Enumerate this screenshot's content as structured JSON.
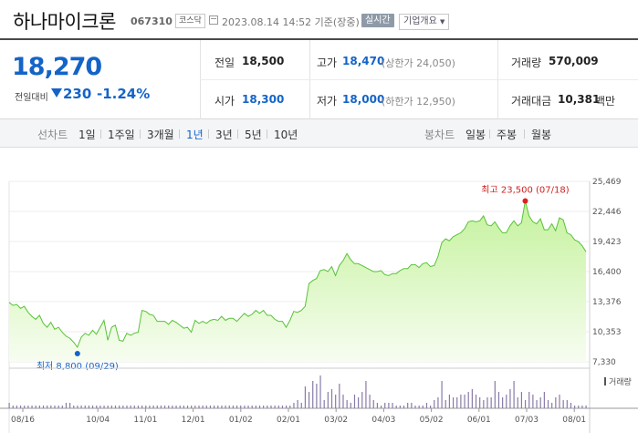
{
  "header": {
    "name": "하나마이크론",
    "code": "067310",
    "market": "코스닥",
    "timestamp": "2023.08.14 14:52 기준(장중)",
    "realtime": "실시간",
    "overview": "기업개요"
  },
  "quote": {
    "price": "18,270",
    "change_label": "전일대비",
    "change": "230",
    "change_pct": "-1.24%",
    "prev_close_label": "전일",
    "prev_close": "18,500",
    "high_label": "고가",
    "high": "18,470",
    "upper_limit": "(상한가 24,050)",
    "volume_label": "거래량",
    "volume": "570,009",
    "open_label": "시가",
    "open": "18,300",
    "low_label": "저가",
    "low": "18,000",
    "lower_limit": "(하한가 12,950)",
    "amount_label": "거래대금",
    "amount": "10,381",
    "amount_unit": "백만"
  },
  "periods": {
    "line_label": "선차트",
    "line_options": [
      "1일",
      "1주일",
      "3개월",
      "1년",
      "3년",
      "5년",
      "10년"
    ],
    "selected": "1년",
    "candle_label": "봉차트",
    "candle_options": [
      "일봉",
      "주봉",
      "월봉"
    ]
  },
  "chart_data": {
    "type": "area",
    "y_ticks": [
      "25,469",
      "22,446",
      "19,423",
      "16,400",
      "13,376",
      "10,353",
      "7,330"
    ],
    "ylim": [
      7330,
      25469
    ],
    "x_ticks": [
      "08/16",
      "10/04",
      "11/01",
      "12/01",
      "01/02",
      "02/01",
      "03/02",
      "04/03",
      "05/02",
      "06/01",
      "07/03",
      "08/01"
    ],
    "max_label": "최고 23,500 (07/18)",
    "min_label": "최저 8,800 (09/29)",
    "volume_label": "거래량",
    "price_series": [
      13300,
      13000,
      13100,
      12700,
      12900,
      12300,
      11900,
      11600,
      12000,
      11200,
      10800,
      11300,
      10600,
      10800,
      10300,
      9900,
      9700,
      9300,
      8800,
      9800,
      10200,
      10000,
      10500,
      10100,
      10800,
      11500,
      9500,
      10800,
      11000,
      9500,
      9400,
      10200,
      10000,
      10200,
      10300,
      12500,
      12400,
      12100,
      12000,
      11400,
      11400,
      11400,
      11100,
      11500,
      11300,
      11000,
      10700,
      10800,
      10300,
      11500,
      11200,
      11400,
      11200,
      11500,
      11600,
      11500,
      11900,
      11500,
      11700,
      11700,
      11400,
      11800,
      12200,
      11900,
      12100,
      12500,
      12200,
      12500,
      12000,
      12000,
      11600,
      11400,
      11400,
      10800,
      11500,
      12400,
      12300,
      12500,
      12900,
      15200,
      15500,
      15700,
      16500,
      16600,
      16400,
      16900,
      16000,
      17000,
      17500,
      18200,
      17600,
      17200,
      17200,
      17000,
      16800,
      16600,
      16400,
      16400,
      16500,
      16100,
      16000,
      16200,
      16200,
      16500,
      16700,
      16700,
      17100,
      17100,
      16800,
      17200,
      17300,
      16900,
      17000,
      17900,
      19300,
      19700,
      19500,
      19900,
      20100,
      20300,
      20700,
      21400,
      21500,
      21400,
      21500,
      22000,
      21100,
      21000,
      21400,
      20800,
      20300,
      20300,
      21000,
      21500,
      21000,
      21300,
      23500,
      22000,
      21400,
      21200,
      21700,
      20600,
      20600,
      21200,
      20500,
      21800,
      21600,
      20300,
      20100,
      19600,
      19400,
      19000,
      18400
    ],
    "volume_series": [
      2,
      1,
      1,
      1,
      1,
      1,
      1,
      1,
      1,
      1,
      1,
      1,
      1,
      1,
      1,
      2,
      2,
      1,
      1,
      1,
      1,
      1,
      1,
      1,
      1,
      1,
      1,
      1,
      1,
      1,
      1,
      1,
      1,
      1,
      1,
      1,
      1,
      1,
      1,
      1,
      1,
      1,
      1,
      1,
      1,
      1,
      1,
      1,
      1,
      1,
      1,
      1,
      1,
      1,
      1,
      1,
      1,
      1,
      1,
      1,
      1,
      1,
      1,
      1,
      1,
      1,
      1,
      1,
      1,
      1,
      1,
      1,
      1,
      1,
      1,
      2,
      3,
      2,
      8,
      6,
      10,
      9,
      12,
      3,
      6,
      7,
      5,
      9,
      5,
      3,
      2,
      5,
      4,
      6,
      10,
      5,
      3,
      2,
      1,
      2,
      2,
      2,
      1,
      1,
      1,
      2,
      2,
      1,
      1,
      1,
      2,
      1,
      3,
      4,
      10,
      3,
      5,
      4,
      4,
      5,
      5,
      6,
      7,
      5,
      4,
      3,
      4,
      4,
      10,
      6,
      4,
      5,
      7,
      10,
      4,
      6,
      3,
      6,
      5,
      3,
      4,
      6,
      3,
      2,
      4,
      5,
      3,
      3,
      2,
      1,
      1,
      1,
      1
    ]
  }
}
